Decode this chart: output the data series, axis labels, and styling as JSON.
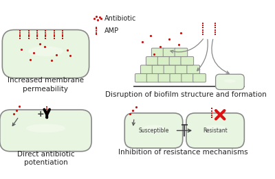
{
  "bg_color": "#ffffff",
  "bacterium_fill": "#e8f5e0",
  "bacterium_edge": "#888888",
  "dot_color": "#cc1111",
  "arrow_color": "#444444",
  "biofilm_fill": "#d8efc8",
  "biofilm_edge": "#888888",
  "label_fontsize": 7.5,
  "legend_fontsize": 7,
  "text_color": "#222222",
  "red_x_color": "#dd1111",
  "panel_labels": {
    "top_left": "Increased membrane\npermeability",
    "top_right": "Disruption of biofilm structure and formation",
    "bottom_left": "Direct antibiotic\npotentiation",
    "bottom_right": "Inhibition of resistance mechanisms"
  },
  "legend_antibiotic": "Antibiotic",
  "legend_amp": "AMP"
}
